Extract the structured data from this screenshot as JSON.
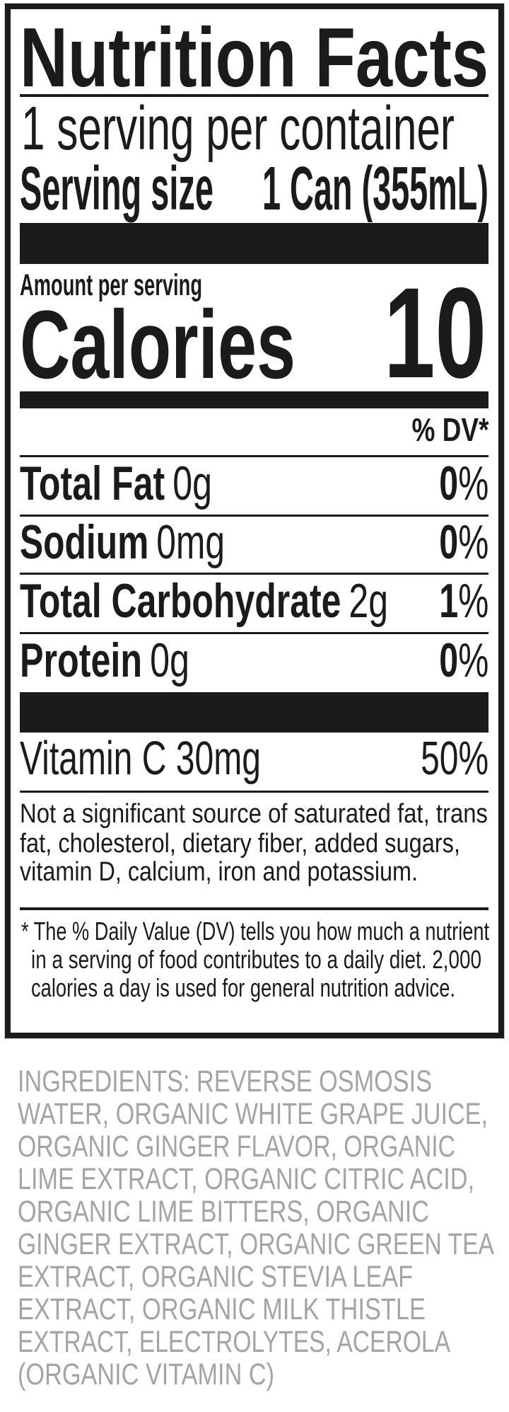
{
  "label": {
    "title": "Nutrition Facts",
    "servings_per_container": "1 serving per container",
    "serving_size_label": "Serving size",
    "serving_size_value": "1 Can (355mL)",
    "amount_per_serving": "Amount per serving",
    "calories_label": "Calories",
    "calories_value": "10",
    "dv_header": "% DV*",
    "nutrients": [
      {
        "name": "Total Fat",
        "amount": "0g",
        "dv_num": "0",
        "dv_sign": "%"
      },
      {
        "name": "Sodium",
        "amount": "0mg",
        "dv_num": "0",
        "dv_sign": "%"
      },
      {
        "name": "Total Carbohydrate",
        "amount": "2g",
        "dv_num": "1",
        "dv_sign": "%"
      },
      {
        "name": "Protein",
        "amount": "0g",
        "dv_num": "0",
        "dv_sign": "%"
      }
    ],
    "vitamins": [
      {
        "name_amount": "Vitamin C 30mg",
        "dv": "50%"
      }
    ],
    "not_significant": [
      "Not a significant source of saturated fat, trans",
      "fat, cholesterol, dietary fiber, added sugars,",
      "vitamin D, calcium, iron and potassium."
    ],
    "footnote": [
      "* The % Daily Value (DV) tells you how much a nutrient",
      "in a serving of food contributes to a daily diet. 2,000",
      "calories a day is used for general nutrition advice."
    ]
  },
  "ingredients": [
    "INGREDIENTS: REVERSE OSMOSIS",
    "WATER, ORGANIC WHITE GRAPE JUICE,",
    "ORGANIC GINGER FLAVOR, ORGANIC",
    "LIME EXTRACT, ORGANIC CITRIC ACID,",
    "ORGANIC LIME BITTERS, ORGANIC",
    "GINGER EXTRACT, ORGANIC GREEN TEA",
    "EXTRACT, ORGANIC STEVIA LEAF",
    "EXTRACT, ORGANIC MILK THISTLE",
    "EXTRACT, ELECTROLYTES, ACEROLA",
    "(ORGANIC VITAMIN C)"
  ],
  "colors": {
    "ink": "#1b1b1b",
    "ingredients": "#a2a4a7"
  }
}
